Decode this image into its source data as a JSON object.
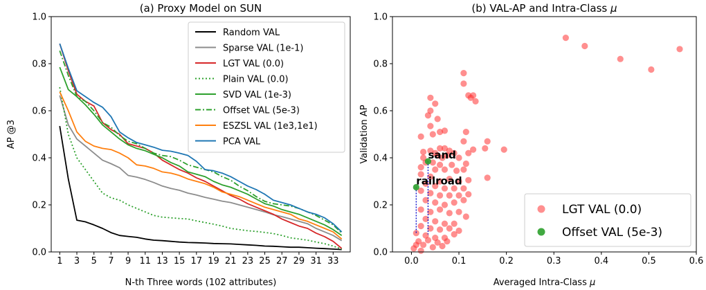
{
  "chart_data": [
    {
      "type": "line",
      "title": "(a) Proxy Model on SUN",
      "xlabel": "N-th Three words (102 attributes)",
      "ylabel": "AP @3",
      "xlim": [
        0,
        35
      ],
      "ylim": [
        0.0,
        1.0
      ],
      "xticks": [
        1,
        3,
        5,
        7,
        9,
        11,
        13,
        15,
        17,
        19,
        21,
        23,
        25,
        27,
        29,
        31,
        33
      ],
      "yticks": [
        0.0,
        0.2,
        0.4,
        0.6,
        0.8,
        1.0
      ],
      "ytick_labels": [
        "0.0",
        "0.2",
        "0.4",
        "0.6",
        "0.8",
        "1.0"
      ],
      "legend_position": "top-right",
      "x": [
        1,
        2,
        3,
        4,
        5,
        6,
        7,
        8,
        9,
        10,
        11,
        12,
        13,
        14,
        15,
        16,
        17,
        18,
        19,
        20,
        21,
        22,
        23,
        24,
        25,
        26,
        27,
        28,
        29,
        30,
        31,
        32,
        33,
        34
      ],
      "series": [
        {
          "name": "Random VAL",
          "color": "#000000",
          "dash": "solid",
          "values": [
            0.535,
            0.31,
            0.135,
            0.128,
            0.115,
            0.1,
            0.082,
            0.07,
            0.066,
            0.062,
            0.055,
            0.05,
            0.048,
            0.045,
            0.042,
            0.04,
            0.039,
            0.038,
            0.036,
            0.035,
            0.034,
            0.032,
            0.03,
            0.028,
            0.025,
            0.024,
            0.022,
            0.02,
            0.02,
            0.018,
            0.016,
            0.014,
            0.012,
            0.01
          ]
        },
        {
          "name": "Sparse VAL (1e-1)",
          "color": "#8c8c8c",
          "dash": "solid",
          "values": [
            0.665,
            0.54,
            0.48,
            0.45,
            0.42,
            0.39,
            0.375,
            0.358,
            0.325,
            0.318,
            0.308,
            0.295,
            0.28,
            0.27,
            0.262,
            0.25,
            0.242,
            0.232,
            0.224,
            0.216,
            0.21,
            0.2,
            0.19,
            0.18,
            0.17,
            0.158,
            0.15,
            0.14,
            0.13,
            0.12,
            0.1,
            0.085,
            0.07,
            0.048
          ]
        },
        {
          "name": "LGT VAL (0.0)",
          "color": "#d62728",
          "dash": "solid",
          "values": [
            0.885,
            0.77,
            0.67,
            0.64,
            0.62,
            0.55,
            0.52,
            0.5,
            0.46,
            0.45,
            0.44,
            0.42,
            0.39,
            0.37,
            0.35,
            0.335,
            0.315,
            0.3,
            0.28,
            0.26,
            0.24,
            0.225,
            0.205,
            0.19,
            0.175,
            0.16,
            0.14,
            0.125,
            0.11,
            0.1,
            0.08,
            0.065,
            0.045,
            0.015
          ]
        },
        {
          "name": "Plain VAL (0.0)",
          "color": "#2ca02c",
          "dash": "dotted",
          "values": [
            0.7,
            0.5,
            0.4,
            0.35,
            0.3,
            0.25,
            0.23,
            0.22,
            0.2,
            0.185,
            0.17,
            0.155,
            0.148,
            0.145,
            0.142,
            0.14,
            0.132,
            0.125,
            0.118,
            0.11,
            0.1,
            0.095,
            0.09,
            0.087,
            0.083,
            0.078,
            0.07,
            0.06,
            0.055,
            0.05,
            0.042,
            0.035,
            0.025,
            0.012
          ]
        },
        {
          "name": "SVD VAL (1e-3)",
          "color": "#2ca02c",
          "dash": "solid",
          "values": [
            0.785,
            0.69,
            0.66,
            0.625,
            0.585,
            0.54,
            0.51,
            0.48,
            0.455,
            0.44,
            0.43,
            0.415,
            0.4,
            0.38,
            0.365,
            0.34,
            0.33,
            0.32,
            0.3,
            0.285,
            0.275,
            0.26,
            0.245,
            0.225,
            0.205,
            0.195,
            0.18,
            0.17,
            0.16,
            0.145,
            0.13,
            0.115,
            0.095,
            0.07
          ]
        },
        {
          "name": "Offset VAL (5e-3)",
          "color": "#2ca02c",
          "dash": "dashdot",
          "values": [
            0.855,
            0.75,
            0.66,
            0.64,
            0.6,
            0.55,
            0.53,
            0.495,
            0.47,
            0.46,
            0.44,
            0.42,
            0.41,
            0.405,
            0.39,
            0.37,
            0.36,
            0.35,
            0.34,
            0.32,
            0.305,
            0.28,
            0.26,
            0.235,
            0.215,
            0.205,
            0.2,
            0.195,
            0.185,
            0.17,
            0.155,
            0.135,
            0.115,
            0.08
          ]
        },
        {
          "name": "ESZSL VAL (1e3,1e1)",
          "color": "#ff7f0e",
          "dash": "solid",
          "values": [
            0.68,
            0.6,
            0.51,
            0.47,
            0.45,
            0.44,
            0.435,
            0.42,
            0.4,
            0.37,
            0.365,
            0.355,
            0.34,
            0.335,
            0.325,
            0.31,
            0.3,
            0.29,
            0.275,
            0.255,
            0.245,
            0.235,
            0.22,
            0.205,
            0.19,
            0.18,
            0.17,
            0.16,
            0.14,
            0.13,
            0.115,
            0.1,
            0.085,
            0.055
          ]
        },
        {
          "name": "PCA VAL",
          "color": "#1f77b4",
          "dash": "solid",
          "values": [
            0.885,
            0.78,
            0.685,
            0.66,
            0.635,
            0.615,
            0.575,
            0.51,
            0.485,
            0.465,
            0.455,
            0.445,
            0.432,
            0.428,
            0.42,
            0.41,
            0.385,
            0.35,
            0.345,
            0.335,
            0.32,
            0.3,
            0.28,
            0.265,
            0.245,
            0.22,
            0.21,
            0.2,
            0.185,
            0.17,
            0.16,
            0.145,
            0.12,
            0.085
          ]
        }
      ]
    },
    {
      "type": "scatter",
      "title": "(b) VAL-AP and Intra-Class",
      "title_symbol": "μ",
      "xlabel": "Averaged Intra-Class",
      "xlabel_symbol": "μ",
      "ylabel": "Validation AP",
      "xlim": [
        -0.04,
        0.6
      ],
      "ylim": [
        0.0,
        1.0
      ],
      "xticks": [
        0.0,
        0.1,
        0.2,
        0.3,
        0.4,
        0.5,
        0.6
      ],
      "xtick_labels": [
        "0.0",
        "0.1",
        "0.2",
        "0.3",
        "0.4",
        "0.5",
        "0.6"
      ],
      "yticks": [
        0.0,
        0.2,
        0.4,
        0.6,
        0.8,
        1.0
      ],
      "ytick_labels": [
        "0.0",
        "0.2",
        "0.4",
        "0.6",
        "0.8",
        "1.0"
      ],
      "legend_position": "bottom-right",
      "annotations": [
        {
          "text": "sand",
          "x": 0.035,
          "y": 0.385
        },
        {
          "text": "railroad",
          "x": 0.01,
          "y": 0.275
        }
      ],
      "connector_color": "#0000cc",
      "series": [
        {
          "name": "LGT VAL (0.0)",
          "color": "#ff3333",
          "opacity": 0.55,
          "points": [
            [
              0.325,
              0.91
            ],
            [
              0.365,
              0.875
            ],
            [
              0.44,
              0.82
            ],
            [
              0.505,
              0.775
            ],
            [
              0.565,
              0.862
            ],
            [
              0.11,
              0.76
            ],
            [
              0.11,
              0.715
            ],
            [
              0.12,
              0.665
            ],
            [
              0.13,
              0.665
            ],
            [
              0.135,
              0.64
            ],
            [
              0.125,
              0.655
            ],
            [
              0.04,
              0.655
            ],
            [
              0.05,
              0.63
            ],
            [
              0.04,
              0.6
            ],
            [
              0.055,
              0.565
            ],
            [
              0.035,
              0.58
            ],
            [
              0.04,
              0.535
            ],
            [
              0.06,
              0.51
            ],
            [
              0.07,
              0.515
            ],
            [
              0.045,
              0.5
            ],
            [
              0.02,
              0.49
            ],
            [
              0.115,
              0.51
            ],
            [
              0.11,
              0.47
            ],
            [
              0.16,
              0.47
            ],
            [
              0.155,
              0.44
            ],
            [
              0.195,
              0.435
            ],
            [
              0.13,
              0.435
            ],
            [
              0.07,
              0.44
            ],
            [
              0.06,
              0.44
            ],
            [
              0.025,
              0.425
            ],
            [
              0.04,
              0.43
            ],
            [
              0.05,
              0.42
            ],
            [
              0.08,
              0.43
            ],
            [
              0.09,
              0.42
            ],
            [
              0.12,
              0.42
            ],
            [
              0.055,
              0.41
            ],
            [
              0.065,
              0.4
            ],
            [
              0.075,
              0.41
            ],
            [
              0.1,
              0.4
            ],
            [
              0.025,
              0.4
            ],
            [
              0.03,
              0.38
            ],
            [
              0.045,
              0.38
            ],
            [
              0.06,
              0.37
            ],
            [
              0.085,
              0.37
            ],
            [
              0.115,
              0.375
            ],
            [
              0.02,
              0.36
            ],
            [
              0.05,
              0.35
            ],
            [
              0.07,
              0.35
            ],
            [
              0.095,
              0.345
            ],
            [
              0.11,
              0.35
            ],
            [
              0.16,
              0.315
            ],
            [
              0.02,
              0.33
            ],
            [
              0.04,
              0.32
            ],
            [
              0.06,
              0.3
            ],
            [
              0.08,
              0.31
            ],
            [
              0.1,
              0.3
            ],
            [
              0.12,
              0.305
            ],
            [
              0.03,
              0.29
            ],
            [
              0.05,
              0.28
            ],
            [
              0.07,
              0.27
            ],
            [
              0.09,
              0.27
            ],
            [
              0.11,
              0.27
            ],
            [
              0.02,
              0.26
            ],
            [
              0.04,
              0.25
            ],
            [
              0.06,
              0.24
            ],
            [
              0.08,
              0.24
            ],
            [
              0.1,
              0.24
            ],
            [
              0.12,
              0.245
            ],
            [
              0.03,
              0.22
            ],
            [
              0.05,
              0.21
            ],
            [
              0.07,
              0.2
            ],
            [
              0.09,
              0.21
            ],
            [
              0.11,
              0.22
            ],
            [
              0.02,
              0.18
            ],
            [
              0.04,
              0.17
            ],
            [
              0.06,
              0.18
            ],
            [
              0.08,
              0.165
            ],
            [
              0.1,
              0.17
            ],
            [
              0.115,
              0.15
            ],
            [
              0.03,
              0.14
            ],
            [
              0.05,
              0.13
            ],
            [
              0.07,
              0.12
            ],
            [
              0.09,
              0.12
            ],
            [
              0.02,
              0.11
            ],
            [
              0.04,
              0.1
            ],
            [
              0.06,
              0.095
            ],
            [
              0.08,
              0.1
            ],
            [
              0.1,
              0.09
            ],
            [
              0.01,
              0.08
            ],
            [
              0.03,
              0.07
            ],
            [
              0.05,
              0.06
            ],
            [
              0.07,
              0.06
            ],
            [
              0.09,
              0.075
            ],
            [
              0.035,
              0.05
            ],
            [
              0.055,
              0.04
            ],
            [
              0.075,
              0.045
            ],
            [
              0.015,
              0.045
            ],
            [
              0.025,
              0.03
            ],
            [
              0.045,
              0.02
            ],
            [
              0.065,
              0.025
            ],
            [
              0.005,
              0.015
            ],
            [
              0.02,
              0.005
            ],
            [
              0.01,
              0.03
            ]
          ]
        },
        {
          "name": "Offset VAL (5e-3)",
          "color": "#2ca02c",
          "opacity": 0.9,
          "points": [
            [
              0.035,
              0.385
            ],
            [
              0.01,
              0.275
            ]
          ]
        }
      ]
    }
  ]
}
